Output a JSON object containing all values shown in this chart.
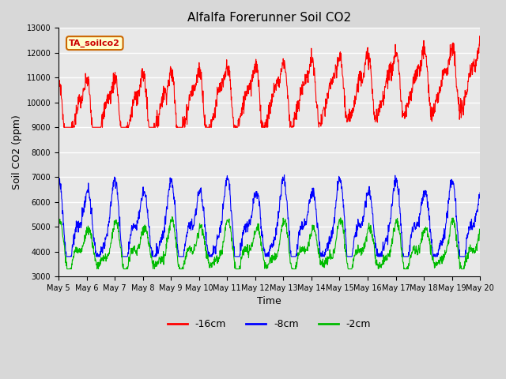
{
  "title": "Alfalfa Forerunner Soil CO2",
  "xlabel": "Time",
  "ylabel": "Soil CO2 (ppm)",
  "ylim": [
    3000,
    13000
  ],
  "yticks": [
    3000,
    4000,
    5000,
    6000,
    7000,
    8000,
    9000,
    10000,
    11000,
    12000,
    13000
  ],
  "legend_label": "TA_soilco2",
  "series_labels": [
    "-16cm",
    "-8cm",
    "-2cm"
  ],
  "series_colors": [
    "#ff0000",
    "#0000ff",
    "#00bb00"
  ],
  "background_color": "#d8d8d8",
  "plot_bg_color": "#e8e8e8",
  "xtick_labels": [
    "May 5",
    "May 6",
    "May 7",
    "May 8",
    "May 9",
    "May 10",
    "May 11",
    "May 12",
    "May 13",
    "May 14",
    "May 15",
    "May 16",
    "May 17",
    "May 18",
    "May 19",
    "May 20"
  ],
  "grid_color": "#ffffff",
  "title_fontsize": 11,
  "tick_fontsize": 7,
  "ylabel_fontsize": 9,
  "xlabel_fontsize": 9
}
